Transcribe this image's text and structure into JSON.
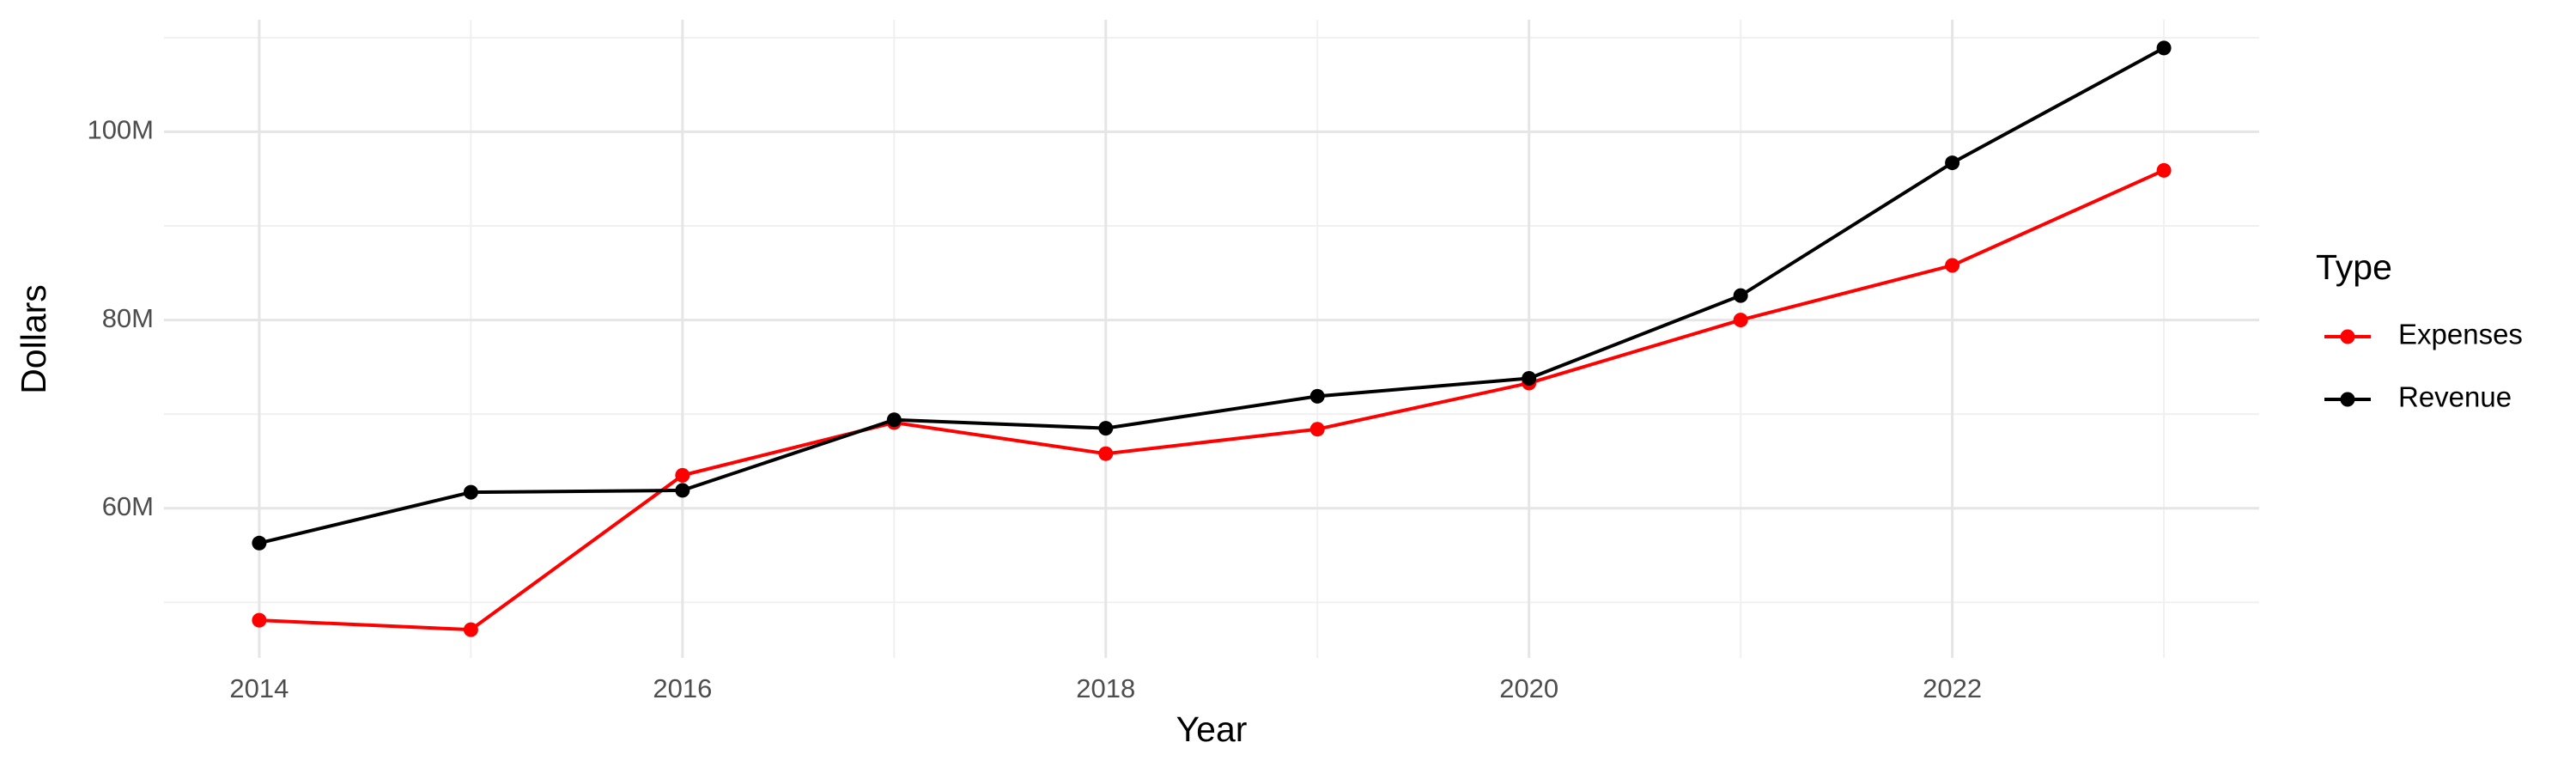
{
  "chart_data": {
    "type": "line",
    "x_label": "Year",
    "y_label": "Dollars",
    "legend_title": "Type",
    "legend_position": "right",
    "grid": true,
    "x": [
      2014,
      2015,
      2016,
      2017,
      2018,
      2019,
      2020,
      2021,
      2022,
      2023
    ],
    "series": [
      {
        "name": "Expenses",
        "color": "#ff0000",
        "values": [
          48100000,
          47100000,
          63500000,
          69100000,
          65800000,
          68400000,
          73300000,
          80000000,
          85800000,
          95900000
        ]
      },
      {
        "name": "Revenue",
        "color": "#000000",
        "values": [
          56300000,
          61700000,
          61900000,
          69400000,
          68500000,
          71900000,
          73800000,
          82600000,
          96700000,
          108900000
        ]
      }
    ],
    "xlim": [
      2013.55,
      2023.45
    ],
    "xticks": [
      2014,
      2016,
      2018,
      2020,
      2022
    ],
    "x_minor_ticks": [
      2015,
      2017,
      2019,
      2021,
      2023
    ],
    "ylim": [
      44100000,
      111900000
    ],
    "yticks": [
      {
        "value": 60000000,
        "label": "60M"
      },
      {
        "value": 80000000,
        "label": "80M"
      },
      {
        "value": 100000000,
        "label": "100M"
      }
    ],
    "y_minor_ticks": [
      50000000,
      70000000,
      90000000,
      110000000
    ]
  }
}
